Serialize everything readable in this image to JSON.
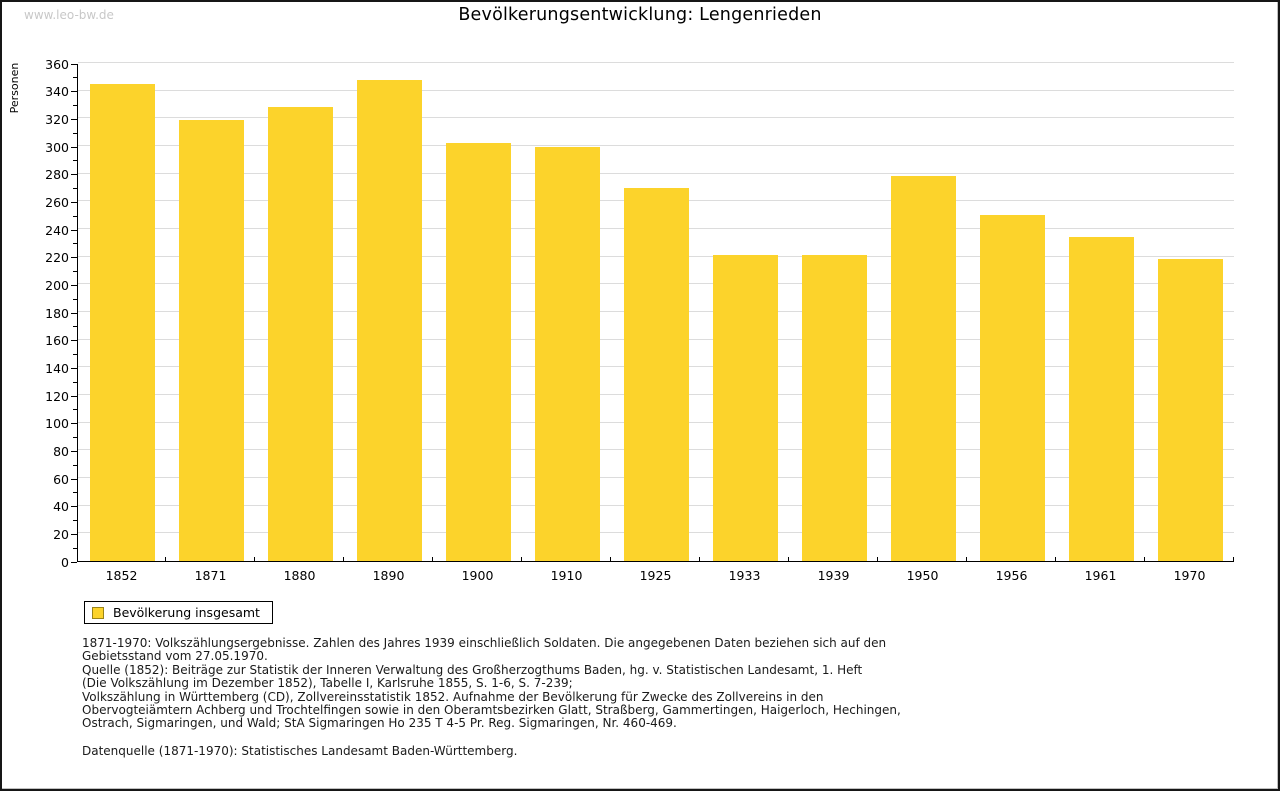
{
  "watermark": "www.leo-bw.de",
  "title": "Bevölkerungsentwicklung: Lengenrieden",
  "chart_data": {
    "type": "bar",
    "title": "Bevölkerungsentwicklung: Lengenrieden",
    "xlabel": "",
    "ylabel": "Personen",
    "categories": [
      "1852",
      "1871",
      "1880",
      "1890",
      "1900",
      "1910",
      "1925",
      "1933",
      "1939",
      "1950",
      "1956",
      "1961",
      "1970"
    ],
    "values": [
      345,
      319,
      328,
      348,
      302,
      299,
      270,
      221,
      221,
      278,
      250,
      234,
      218
    ],
    "ylim": [
      0,
      360
    ],
    "ytick_step": 20,
    "yminor_step": 10,
    "grid": true,
    "bar_color": "#FCD32B",
    "legend_position": "bottom-left"
  },
  "legend": {
    "label": "Bevölkerung insgesamt",
    "swatch_color": "#FCD32B",
    "swatch_border": "#9A8419"
  },
  "footnotes": {
    "lines": [
      "1871-1970: Volkszählungsergebnisse. Zahlen des Jahres 1939 einschließlich Soldaten. Die angegebenen Daten beziehen sich auf den",
      "Gebietsstand vom 27.05.1970.",
      "Quelle (1852): Beiträge zur Statistik der Inneren Verwaltung des Großherzogthums Baden, hg. v. Statistischen Landesamt, 1. Heft",
      "(Die Volkszählung im Dezember 1852), Tabelle I, Karlsruhe 1855, S. 1-6, S. 7-239;",
      "Volkszählung in Württemberg (CD), Zollvereinsstatistik 1852. Aufnahme der Bevölkerung für Zwecke des Zollvereins in den",
      "Obervogteiämtern Achberg und Trochtelfingen sowie in den Oberamtsbezirken Glatt, Straßberg, Gammertingen, Haigerloch, Hechingen,",
      "Ostrach, Sigmaringen, und Wald; StA Sigmaringen Ho 235 T 4-5 Pr. Reg. Sigmaringen, Nr. 460-469."
    ],
    "datasource": "Datenquelle (1871-1970): Statistisches Landesamt Baden-Württemberg."
  },
  "colors": {
    "bar": "#FCD32B",
    "gridline": "#DCDCDC",
    "axis": "#000000",
    "watermark": "#C8C8C8",
    "background": "#FFFFFF"
  }
}
